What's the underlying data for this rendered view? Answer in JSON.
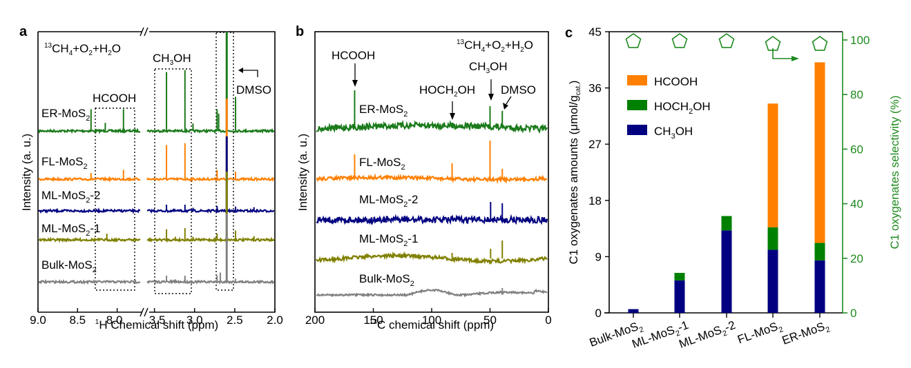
{
  "panels": {
    "a": {
      "letter": "a",
      "condition": "13CH4+O2+H2O",
      "ylabel": "Intensity (a. u.)",
      "xlabel": "1H Chemical shift (ppm)"
    },
    "b": {
      "letter": "b",
      "condition": "13CH4+O2+H2O",
      "ylabel": "Intensity (a. u.)",
      "xlabel": "13C chemical shift (ppm)"
    },
    "c": {
      "letter": "c",
      "ylabel_left": "C1 oxygenates amounts (μmol/gcat.)",
      "ylabel_right": "C1 oxygenates selectivity (%)"
    }
  },
  "chart_data": [
    {
      "type": "line",
      "panel": "a",
      "title": "",
      "xlabel": "1H Chemical shift (ppm)",
      "ylabel": "Intensity (a. u.)",
      "x_axis_broken": true,
      "x_segments": [
        [
          9.0,
          7.7
        ],
        [
          3.6,
          2.0
        ]
      ],
      "xticks": [
        "9.0",
        "8.5",
        "8.0",
        "3.5",
        "3.0",
        "2.5",
        "2.0"
      ],
      "annotations": [
        "13CH4+O2+H2O",
        "HCOOH",
        "CH3OH",
        "DMSO"
      ],
      "series": [
        {
          "name": "ER-MoS2",
          "color": "#1a7a1a",
          "peaks_ppm": [
            [
              8.33,
              0.35
            ],
            [
              8.15,
              0.13
            ],
            [
              7.92,
              0.35
            ],
            [
              3.35,
              0.95
            ],
            [
              3.12,
              0.98
            ],
            [
              3.02,
              0.12
            ],
            [
              2.72,
              0.35
            ],
            [
              2.7,
              0.28
            ],
            [
              2.6,
              1.8
            ],
            [
              2.49,
              0.55
            ]
          ]
        },
        {
          "name": "FL-MoS2",
          "color": "#ff8000",
          "peaks_ppm": [
            [
              8.33,
              0.1
            ],
            [
              7.92,
              0.15
            ],
            [
              3.35,
              0.55
            ],
            [
              3.12,
              0.58
            ],
            [
              2.72,
              0.15
            ],
            [
              2.6,
              1.3
            ],
            [
              2.49,
              0.12
            ]
          ]
        },
        {
          "name": "ML-MoS2-2",
          "color": "#000080",
          "peaks_ppm": [
            [
              3.35,
              0.1
            ],
            [
              3.12,
              0.1
            ],
            [
              3.02,
              0.05
            ],
            [
              2.72,
              0.08
            ],
            [
              2.6,
              1.2
            ],
            [
              2.49,
              0.07
            ],
            [
              2.26,
              0.06
            ]
          ]
        },
        {
          "name": "ML-MoS2-1",
          "color": "#808000",
          "peaks_ppm": [
            [
              8.13,
              0.1
            ],
            [
              3.35,
              0.17
            ],
            [
              3.24,
              0.05
            ],
            [
              3.12,
              0.19
            ],
            [
              3.02,
              0.05
            ],
            [
              2.72,
              0.1
            ],
            [
              2.6,
              1.1
            ],
            [
              2.49,
              0.15
            ],
            [
              2.26,
              0.06
            ]
          ]
        },
        {
          "name": "Bulk-MoS2",
          "color": "#808080",
          "peaks_ppm": [
            [
              3.35,
              0.1
            ],
            [
              3.24,
              0.04
            ],
            [
              3.12,
              0.1
            ],
            [
              2.72,
              0.1
            ],
            [
              2.68,
              0.15
            ],
            [
              2.6,
              1.1
            ],
            [
              2.49,
              0.05
            ]
          ]
        }
      ]
    },
    {
      "type": "line",
      "panel": "b",
      "title": "",
      "xlabel": "13C chemical shift (ppm)",
      "ylabel": "Intensity (a. u.)",
      "xlim": [
        200,
        0
      ],
      "xticks": [
        "200",
        "150",
        "100",
        "50",
        "0"
      ],
      "annotations": [
        "13CH4+O2+H2O",
        "HCOOH",
        "HOCH2OH",
        "CH3OH",
        "DMSO"
      ],
      "series": [
        {
          "name": "ER-MoS2",
          "color": "#1a7a1a",
          "peaks_ppm": [
            [
              166,
              0.55
            ],
            [
              82.5,
              0.08
            ],
            [
              50,
              0.32
            ],
            [
              39.5,
              0.25
            ]
          ]
        },
        {
          "name": "FL-MoS2",
          "color": "#ff8000",
          "peaks_ppm": [
            [
              166,
              0.35
            ],
            [
              82.5,
              0.22
            ],
            [
              50,
              0.55
            ],
            [
              39.5,
              0.14
            ]
          ]
        },
        {
          "name": "ML-MoS2-2",
          "color": "#000080",
          "peaks_ppm": [
            [
              123,
              0.06
            ],
            [
              82.5,
              0.06
            ],
            [
              49.5,
              0.26
            ],
            [
              39.5,
              0.24
            ]
          ]
        },
        {
          "name": "ML-MoS2-1",
          "color": "#808000",
          "peaks_ppm": [
            [
              82.5,
              0.08
            ],
            [
              49.5,
              0.14
            ],
            [
              39.5,
              0.26
            ]
          ]
        },
        {
          "name": "Bulk-MoS2",
          "color": "#808080",
          "peaks_ppm": [
            [
              39.5,
              0.1
            ]
          ]
        }
      ]
    },
    {
      "type": "bar",
      "panel": "c",
      "stacked": true,
      "title": "",
      "xlabel": "",
      "ylabel": "C1 oxygenates amounts (μmol/gcat.)",
      "ylim": [
        0,
        45
      ],
      "yticks": [
        0,
        9,
        18,
        27,
        36,
        45
      ],
      "y2label": "C1 oxygenates selectivity (%)",
      "y2lim": [
        0,
        104
      ],
      "y2ticks": [
        0,
        20,
        40,
        60,
        80,
        100
      ],
      "categories": [
        "Bulk-MoS2",
        "ML-MoS2-1",
        "ML-MoS2-2",
        "FL-MoS2",
        "ER-MoS2"
      ],
      "series": [
        {
          "name": "CH3OH",
          "color": "#000080",
          "values": [
            0.6,
            5.2,
            13.2,
            10.1,
            8.4
          ]
        },
        {
          "name": "HOCH2OH",
          "color": "#008000",
          "values": [
            0,
            1.2,
            2.3,
            3.6,
            2.8
          ]
        },
        {
          "name": "HCOOH",
          "color": "#ff8000",
          "values": [
            0,
            0,
            0,
            19.8,
            28.9
          ]
        }
      ],
      "selectivity": {
        "name": "C1 oxygenates selectivity",
        "marker": "pentagon",
        "color": "#1e8a1e",
        "values": [
          100,
          100,
          100,
          99,
          99
        ]
      },
      "legend": {
        "position": "top-left",
        "entries": [
          "HCOOH",
          "HOCH2OH",
          "CH3OH"
        ]
      }
    }
  ]
}
